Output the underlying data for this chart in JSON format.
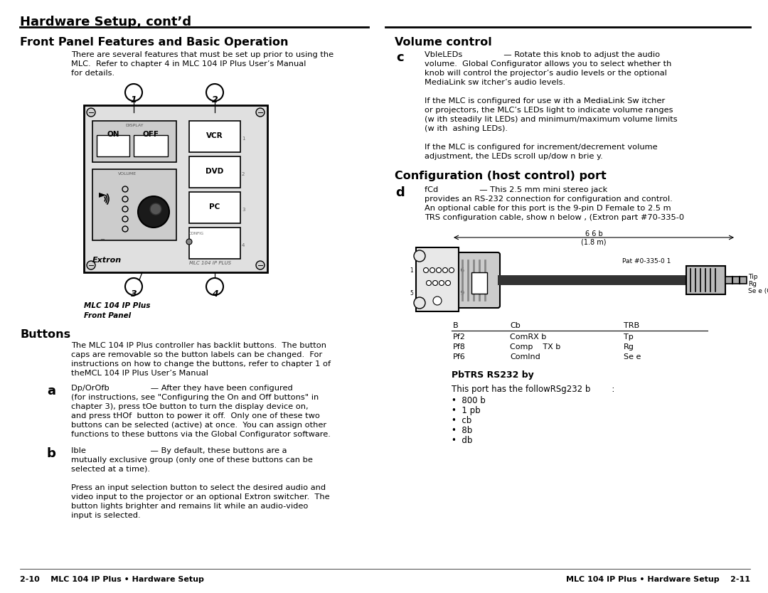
{
  "title": "Hardware Setup, cont’d",
  "left_section_title": "Front Panel Features and Basic Operation",
  "right_section_title_vol": "Volume control",
  "right_section_title_config": "Configuration (host control) port",
  "bottom_left": "2-10    MLC 104 IP Plus • Hardware Setup",
  "bottom_right": "MLC 104 IP Plus • Hardware Setup    2-11",
  "bg_color": "#ffffff",
  "intro_text_lines": [
    "There are several features that must be set up prior to using the",
    "MLC.  Refer to chapter 4 in MLC 104 IP Plus User’s Manual",
    "for details."
  ],
  "buttons_title": "Buttons",
  "buttons_intro_lines": [
    "The MLC 104 IP Plus controller has backlit buttons.  The button",
    "caps are removable so the button labels can be changed.  For",
    "instructions on how to change the buttons, refer to chapter 1 of",
    "theMCL 104 IP Plus User’s Manual"
  ],
  "a_label": "a",
  "a_title": "Dp/OrOfb",
  "a_lines": [
    "Dp/OrOfb                — After they have been configured",
    "(for instructions, see \"Configuring the On and Off buttons\" in",
    "chapter 3), press tOe button to turn the display device on,",
    "and press tHOf  button to power it off.  Only one of these two",
    "buttons can be selected (active) at once.  You can assign other",
    "functions to these buttons via the Global Configurator software."
  ],
  "b_label": "b",
  "b_title": "Ible",
  "b_lines": [
    "Ible                         — By default, these buttons are a",
    "mutually exclusive group (only one of these buttons can be",
    "selected at a time).",
    "",
    "Press an input selection button to select the desired audio and",
    "video input to the projector or an optional Extron switcher.  The",
    "button lights brighter and remains lit while an audio-video",
    "input is selected."
  ],
  "c_label": "c",
  "c_title": "VbleLEDs",
  "c_lines": [
    "VbleLEDs                — Rotate this knob to adjust the audio",
    "volume.  Global Configurator allows you to select whether th",
    "knob will control the projector’s audio levels or the optional",
    "MediaLink sw itcher’s audio levels.",
    "",
    "If the MLC is configured for use w ith a MediaLink Sw itcher",
    "or projectors, the MLC’s LEDs light to indicate volume ranges",
    "(w ith steadily lit LEDs) and minimum/maximum volume limits",
    "(w ith  ashing LEDs).",
    "",
    "If the MLC is configured for increment/decrement volume",
    "adjustment, the LEDs scroll up/dow n brie y."
  ],
  "d_label": "d",
  "d_title": "fCd",
  "d_lines": [
    "fCd                — This 2.5 mm mini stereo jack",
    "provides an RS-232 connection for configuration and control.",
    "An optional cable for this port is the 9-pin D Female to 2.5 m",
    "TRS configuration cable, show n below , (Extron part #70-335-0"
  ],
  "cable_dim_top": "6 6 b",
  "cable_dim_bot": "(1.8 m)",
  "cable_part": "Pat #0-335-0 1",
  "pin_labels_left": [
    "1",
    "5"
  ],
  "pin_labels_right": [
    "6",
    "9"
  ],
  "tip_labels": [
    "Tip",
    "Rg",
    "Se e (Gd)"
  ],
  "trs_title": "PbTRS RS232 by",
  "trs_port_desc": "This port has the followRSg232 b        :",
  "trs_bullets": [
    "•  800 b",
    "•  1 pb",
    "•  cb",
    "•  8b",
    "•  db"
  ],
  "pinout_headers": [
    "B",
    "Cb",
    "TRB"
  ],
  "pinout_rows": [
    [
      "Pf2",
      "ComRX b",
      "Tp"
    ],
    [
      "Pf8",
      "Comp    TX b",
      "Rg"
    ],
    [
      "Pf6",
      "Comlnd",
      "Se e"
    ]
  ]
}
